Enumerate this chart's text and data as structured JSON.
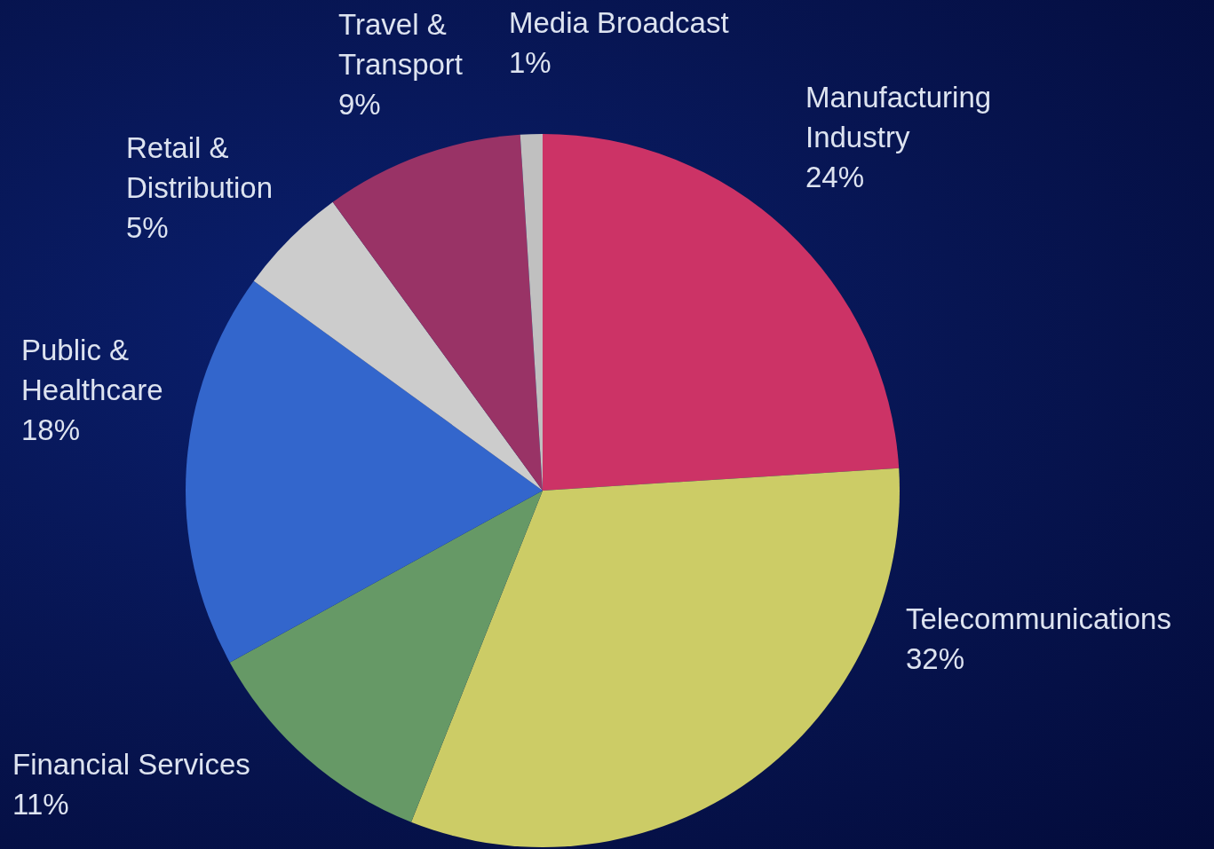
{
  "chart_data": {
    "type": "pie",
    "categories": [
      "Manufacturing Industry",
      "Telecommunications",
      "Financial Services",
      "Public & Healthcare",
      "Retail & Distribution",
      "Travel & Transport",
      "Media Broadcast"
    ],
    "values": [
      24,
      32,
      11,
      18,
      5,
      9,
      1
    ],
    "value_labels": [
      "24%",
      "32%",
      "11%",
      "18%",
      "5%",
      "9%",
      "1%"
    ],
    "colors": [
      "#cc3366",
      "#cccc66",
      "#669966",
      "#3366cc",
      "#cccccc",
      "#993366",
      "#c0c0c0"
    ]
  }
}
